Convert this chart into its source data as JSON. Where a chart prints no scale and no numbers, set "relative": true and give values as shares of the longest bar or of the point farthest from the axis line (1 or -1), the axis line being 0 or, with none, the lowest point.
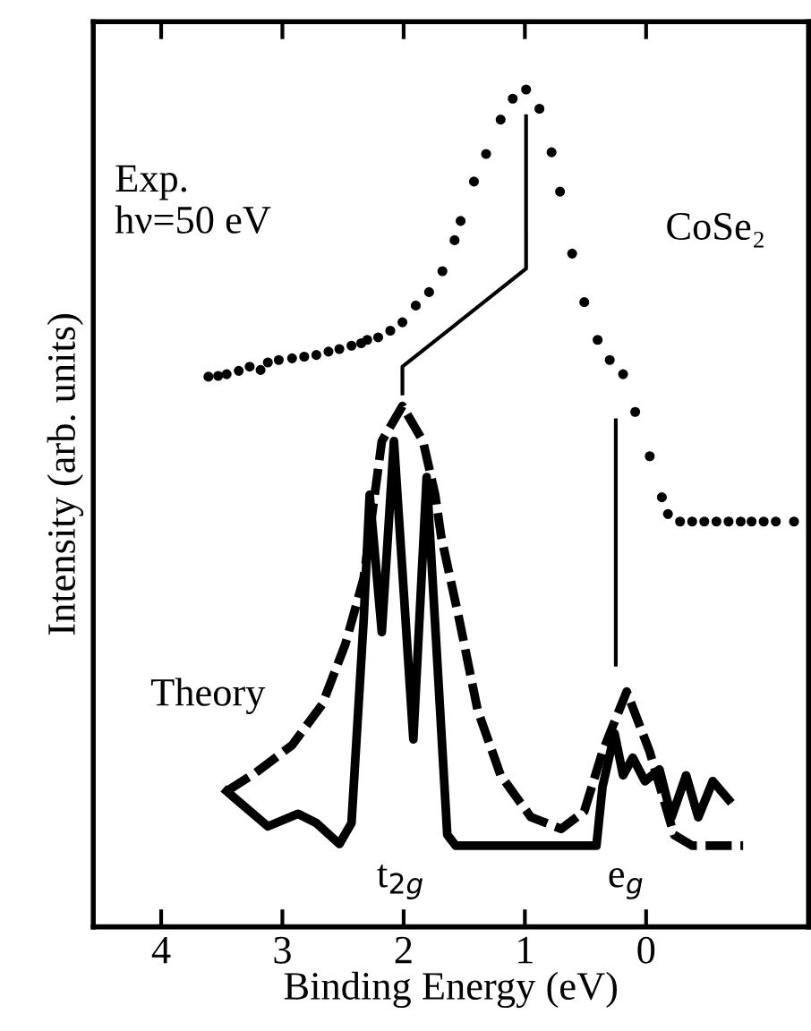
{
  "chart_data": {
    "type": "line",
    "xlabel": "Binding Energy (eV)",
    "ylabel": "Intensity (arb. units)",
    "relative": true,
    "xlim": [
      4.56,
      -1.34
    ],
    "xticks": [
      4,
      3,
      2,
      1,
      0
    ],
    "tick_labels": "x",
    "grid": false,
    "legend": false,
    "series": [
      {
        "type": "scatter",
        "color": "#000000",
        "marker": "circle",
        "x": [
          3.61,
          3.53,
          3.46,
          3.36,
          3.27,
          3.18,
          3.12,
          3.03,
          2.92,
          2.82,
          2.72,
          2.62,
          2.53,
          2.43,
          2.35,
          2.3,
          2.21,
          2.11,
          2.01,
          1.9,
          1.79,
          1.68,
          1.58,
          1.53,
          1.42,
          1.32,
          1.2,
          1.1,
          0.99,
          0.88,
          0.78,
          0.71,
          0.61,
          0.51,
          0.4,
          0.3,
          0.19,
          0.09,
          -0.03,
          -0.13,
          -0.18,
          -0.28,
          -0.38,
          -0.48,
          -0.58,
          -0.68,
          -0.78,
          -0.87,
          -0.97,
          -1.07,
          -1.22
        ],
        "values": [
          0.657,
          0.658,
          0.66,
          0.664,
          0.669,
          0.665,
          0.674,
          0.677,
          0.679,
          0.681,
          0.683,
          0.687,
          0.69,
          0.694,
          0.697,
          0.701,
          0.704,
          0.712,
          0.722,
          0.742,
          0.758,
          0.783,
          0.82,
          0.843,
          0.89,
          0.923,
          0.964,
          0.989,
          1.0,
          0.977,
          0.925,
          0.878,
          0.804,
          0.746,
          0.701,
          0.677,
          0.66,
          0.615,
          0.562,
          0.513,
          0.493,
          0.484,
          0.484,
          0.484,
          0.484,
          0.484,
          0.484,
          0.484,
          0.484,
          0.484,
          0.484
        ]
      },
      {
        "color": "#000000",
        "line_style": "dashed",
        "x": [
          3.46,
          3.22,
          2.92,
          2.67,
          2.48,
          2.33,
          2.18,
          2.01,
          1.84,
          1.74,
          1.69,
          1.54,
          1.39,
          1.2,
          0.95,
          0.7,
          0.51,
          0.36,
          0.16,
          -0.03,
          -0.23,
          -0.38,
          -0.8
        ],
        "values": [
          0.162,
          0.184,
          0.217,
          0.266,
          0.338,
          0.416,
          0.58,
          0.622,
          0.58,
          0.516,
          0.466,
          0.366,
          0.259,
          0.181,
          0.131,
          0.117,
          0.138,
          0.209,
          0.281,
          0.209,
          0.11,
          0.097,
          0.097
        ]
      },
      {
        "color": "#000000",
        "line_style": "solid",
        "x": [
          3.46,
          3.12,
          2.87,
          2.72,
          2.53,
          2.43,
          2.33,
          2.28,
          2.18,
          2.08,
          1.92,
          1.81,
          1.64,
          1.57,
          0.41,
          0.36,
          0.26,
          0.19,
          0.11,
          0.01,
          -0.11,
          -0.21,
          -0.33,
          -0.43,
          -0.55,
          -0.68
        ],
        "values": [
          0.162,
          0.12,
          0.135,
          0.124,
          0.099,
          0.124,
          0.366,
          0.516,
          0.352,
          0.58,
          0.224,
          0.537,
          0.11,
          0.097,
          0.097,
          0.167,
          0.231,
          0.181,
          0.202,
          0.174,
          0.188,
          0.131,
          0.181,
          0.131,
          0.174,
          0.152
        ]
      },
      {
        "color": "#000000",
        "x": [
          0.99,
          0.99,
          2.01,
          2.01
        ],
        "values": [
          0.968,
          0.786,
          0.669,
          0.637
        ]
      },
      {
        "color": "#000000",
        "x": [
          0.25,
          0.25
        ],
        "values": [
          0.605,
          0.313
        ]
      }
    ],
    "annotations": [
      "Exp.\nhν=50 eV",
      "CoSe₂",
      "Theory",
      "t$_{2g}$",
      "e$_{g}$"
    ]
  }
}
